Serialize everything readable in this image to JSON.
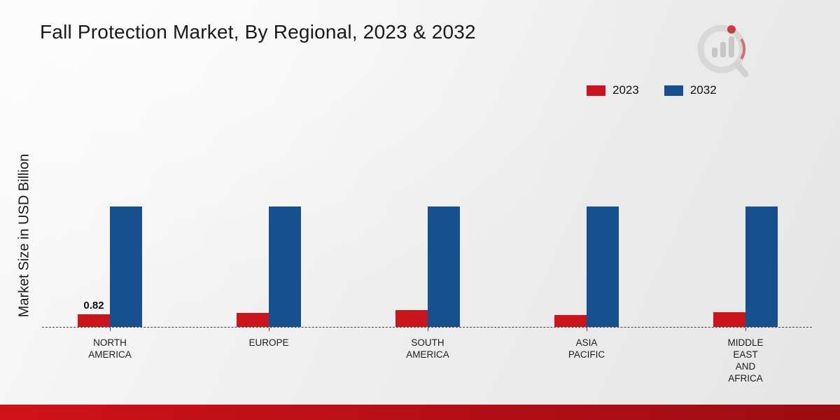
{
  "chart_data": {
    "type": "bar",
    "title": "Fall Protection Market, By Regional, 2023 & 2032",
    "xlabel": "",
    "ylabel": "Market Size in USD Billion",
    "categories": [
      "NORTH\nAMERICA",
      "EUROPE",
      "SOUTH\nAMERICA",
      "ASIA\nPACIFIC",
      "MIDDLE\nEAST\nAND\nAFRICA"
    ],
    "series": [
      {
        "name": "2023",
        "color": "#c9151b",
        "values": [
          0.82,
          0.9,
          1.1,
          0.75,
          0.95
        ],
        "labels": [
          "0.82",
          "",
          "",
          "",
          ""
        ]
      },
      {
        "name": "2032",
        "color": "#17508f",
        "values": [
          7.8,
          7.8,
          7.8,
          7.8,
          7.8
        ],
        "labels": [
          "",
          "",
          "",
          "",
          ""
        ]
      }
    ],
    "ylim": [
      0,
      8
    ],
    "grid": false,
    "legend_position": "top-right",
    "baseline_style": "dashed",
    "value_axis_visible": false
  },
  "footer": {
    "band_color": "#b30f15"
  },
  "logo": {
    "name": "market-research-logo"
  }
}
